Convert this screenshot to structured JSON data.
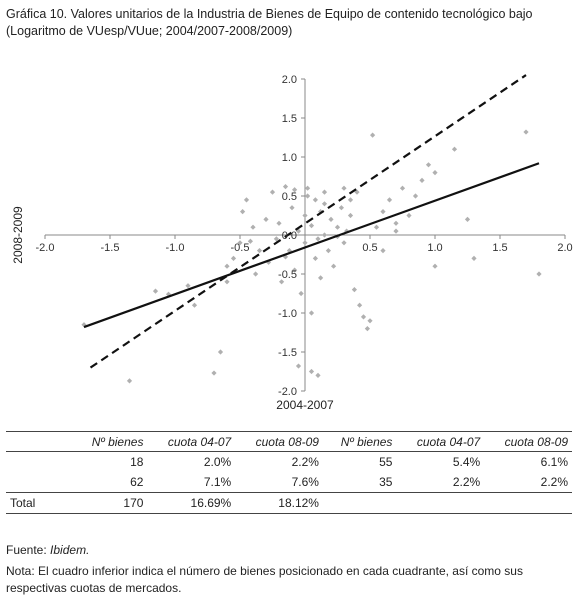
{
  "title": "Gráfica 10. Valores unitarios de la Industria de Bienes de Equipo de contenido tecnológico bajo (Logaritmo de VUesp/VUue; 2004/2007-2008/2009)",
  "chart_data": {
    "type": "scatter",
    "title": "",
    "xlabel": "2004-2007",
    "ylabel": "2008-2009",
    "xlim": [
      -2.0,
      2.0
    ],
    "ylim": [
      -2.0,
      2.0
    ],
    "xticks": [
      -2.0,
      -1.5,
      -1.0,
      -0.5,
      0.5,
      1.0,
      1.5,
      2.0
    ],
    "yticks": [
      2.0,
      1.5,
      1.0,
      0.5,
      0.0,
      -0.5,
      -1.0,
      -1.5,
      -2.0
    ],
    "xtick_labels": [
      "-2.0",
      "-1.5",
      "-1.0",
      "-0.5",
      "0.5",
      "1.0",
      "1.5",
      "2.0"
    ],
    "ytick_labels": [
      "2.0",
      "1.5",
      "1.0",
      "0.5",
      "0.0",
      "-0.5",
      "-1.0",
      "-1.5",
      "-2.0"
    ],
    "grid": false,
    "point_color": "#b0b0b0",
    "line_color": "#111111",
    "points": [
      [
        -1.7,
        -1.15
      ],
      [
        -1.35,
        -1.87
      ],
      [
        -1.15,
        -0.72
      ],
      [
        -1.05,
        -0.76
      ],
      [
        -0.9,
        -0.65
      ],
      [
        -0.65,
        -1.5
      ],
      [
        -0.7,
        -1.77
      ],
      [
        -0.6,
        -0.6
      ],
      [
        -0.55,
        -0.3
      ],
      [
        -0.5,
        -0.1
      ],
      [
        -0.48,
        0.3
      ],
      [
        -0.45,
        0.45
      ],
      [
        -0.4,
        0.1
      ],
      [
        -0.38,
        -0.5
      ],
      [
        -0.35,
        -0.2
      ],
      [
        -0.3,
        0.2
      ],
      [
        -0.28,
        -0.35
      ],
      [
        -0.25,
        0.55
      ],
      [
        -0.22,
        -0.05
      ],
      [
        -0.2,
        0.15
      ],
      [
        -0.18,
        -0.6
      ],
      [
        -0.15,
        0.62
      ],
      [
        -0.12,
        -0.2
      ],
      [
        -0.1,
        0.35
      ],
      [
        -0.08,
        -0.45
      ],
      [
        -0.05,
        0.05
      ],
      [
        -0.03,
        -0.75
      ],
      [
        0.0,
        0.25
      ],
      [
        0.0,
        -0.1
      ],
      [
        0.02,
        0.5
      ],
      [
        0.05,
        -1.0
      ],
      [
        0.05,
        0.12
      ],
      [
        0.08,
        -0.3
      ],
      [
        0.08,
        0.45
      ],
      [
        0.1,
        -0.05
      ],
      [
        0.12,
        0.3
      ],
      [
        0.12,
        -0.55
      ],
      [
        0.15,
        0.4
      ],
      [
        0.15,
        0.0
      ],
      [
        0.18,
        -0.2
      ],
      [
        0.2,
        0.2
      ],
      [
        0.22,
        -0.4
      ],
      [
        0.25,
        0.1
      ],
      [
        0.28,
        0.35
      ],
      [
        0.3,
        -0.1
      ],
      [
        0.32,
        0.05
      ],
      [
        0.35,
        0.25
      ],
      [
        0.38,
        -0.7
      ],
      [
        0.4,
        0.55
      ],
      [
        0.42,
        -0.9
      ],
      [
        0.45,
        -1.05
      ],
      [
        0.48,
        -1.2
      ],
      [
        0.5,
        -1.1
      ],
      [
        0.52,
        1.28
      ],
      [
        0.55,
        0.1
      ],
      [
        0.6,
        0.3
      ],
      [
        0.65,
        0.45
      ],
      [
        0.7,
        0.15
      ],
      [
        0.75,
        0.6
      ],
      [
        0.8,
        0.25
      ],
      [
        0.85,
        0.5
      ],
      [
        0.9,
        0.7
      ],
      [
        0.95,
        0.9
      ],
      [
        1.0,
        0.8
      ],
      [
        1.0,
        -0.4
      ],
      [
        1.15,
        1.1
      ],
      [
        1.25,
        0.2
      ],
      [
        1.3,
        -0.3
      ],
      [
        1.7,
        1.32
      ],
      [
        1.8,
        -0.5
      ],
      [
        -0.05,
        -1.68
      ],
      [
        0.05,
        -1.75
      ],
      [
        0.1,
        -1.8
      ],
      [
        -0.08,
        0.58
      ],
      [
        0.02,
        0.6
      ],
      [
        0.35,
        0.45
      ],
      [
        -0.15,
        -0.28
      ],
      [
        0.25,
        -0.02
      ],
      [
        -0.42,
        -0.08
      ],
      [
        0.15,
        0.55
      ],
      [
        0.6,
        -0.2
      ],
      [
        0.7,
        0.05
      ],
      [
        -0.6,
        -0.4
      ],
      [
        -0.85,
        -0.9
      ],
      [
        0.3,
        0.6
      ]
    ],
    "lines": [
      {
        "style": "solid",
        "points": [
          [
            -1.7,
            -1.18
          ],
          [
            1.8,
            0.92
          ]
        ]
      },
      {
        "style": "dashed",
        "points": [
          [
            -1.65,
            -1.7
          ],
          [
            1.7,
            2.05
          ]
        ]
      }
    ]
  },
  "table": {
    "headers": [
      "",
      "Nº bienes",
      "cuota 04-07",
      "cuota 08-09",
      "Nº bienes",
      "cuota 04-07",
      "cuota 08-09"
    ],
    "rows": [
      [
        "",
        "18",
        "2.0%",
        "2.2%",
        "55",
        "5.4%",
        "6.1%"
      ],
      [
        "",
        "62",
        "7.1%",
        "7.6%",
        "35",
        "2.2%",
        "2.2%"
      ]
    ],
    "total": [
      "Total",
      "170",
      "16.69%",
      "18.12%",
      "",
      "",
      ""
    ]
  },
  "source": {
    "label": "Fuente:",
    "value": "Ibidem."
  },
  "note": "Nota: El cuadro inferior indica el número de bienes posicionado en cada cuadrante, así como sus respectivas cuotas de mercados."
}
